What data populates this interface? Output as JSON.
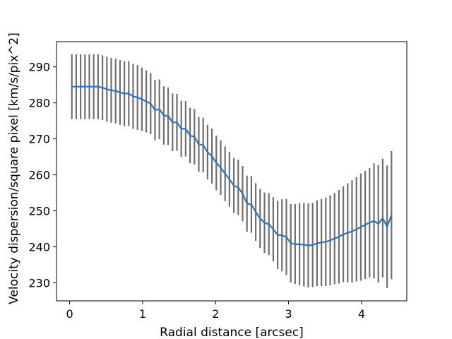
{
  "chart_data": {
    "type": "line",
    "xlabel": "Radial distance [arcsec]",
    "ylabel": "Velocity dispersion/square pixel [km/s/pix^2]",
    "xlim": [
      -0.18,
      4.62
    ],
    "ylim": [
      225,
      297
    ],
    "xticks": [
      0,
      1,
      2,
      3,
      4
    ],
    "yticks": [
      230,
      240,
      250,
      260,
      270,
      280,
      290
    ],
    "grid": false,
    "line_color": "#2f74c0",
    "errorbar_color": "#707070",
    "series": [
      {
        "x": [
          0.03,
          0.09,
          0.15,
          0.21,
          0.27,
          0.33,
          0.39,
          0.45,
          0.51,
          0.57,
          0.63,
          0.69,
          0.75,
          0.81,
          0.87,
          0.93,
          0.99,
          1.05,
          1.11,
          1.17,
          1.23,
          1.29,
          1.35,
          1.41,
          1.47,
          1.53,
          1.59,
          1.65,
          1.71,
          1.77,
          1.83,
          1.89,
          1.95,
          2.01,
          2.07,
          2.13,
          2.19,
          2.25,
          2.31,
          2.37,
          2.43,
          2.49,
          2.55,
          2.61,
          2.67,
          2.73,
          2.79,
          2.85,
          2.91,
          2.97,
          3.03,
          3.09,
          3.15,
          3.21,
          3.27,
          3.33,
          3.39,
          3.45,
          3.51,
          3.57,
          3.63,
          3.69,
          3.75,
          3.81,
          3.87,
          3.93,
          3.99,
          4.05,
          4.11,
          4.17,
          4.23,
          4.29,
          4.35,
          4.41
        ],
        "y": [
          284.5,
          284.5,
          284.5,
          284.5,
          284.5,
          284.5,
          284.5,
          284.2,
          283.8,
          283.5,
          283.3,
          282.9,
          282.6,
          282.6,
          281.8,
          281.5,
          281.0,
          280.4,
          279.8,
          278.0,
          278.2,
          276.5,
          276.3,
          274.6,
          274.6,
          272.8,
          272.8,
          270.9,
          270.6,
          268.5,
          268.3,
          266.3,
          265.2,
          263.3,
          262.0,
          260.3,
          258.8,
          257.0,
          256.5,
          254.8,
          252.0,
          251.8,
          249.7,
          247.9,
          246.7,
          246.3,
          244.9,
          243.3,
          243.2,
          242.7,
          241.0,
          240.8,
          240.7,
          240.6,
          240.4,
          240.5,
          241.0,
          241.2,
          241.4,
          241.8,
          242.3,
          242.8,
          243.5,
          243.9,
          244.3,
          244.9,
          245.5,
          246.1,
          246.7,
          247.2,
          246.4,
          248.0,
          245.6,
          248.8
        ],
        "yerr": [
          9.0,
          9.0,
          9.0,
          9.0,
          9.0,
          9.0,
          9.0,
          9.0,
          9.0,
          9.0,
          9.0,
          9.0,
          9.0,
          9.0,
          9.0,
          9.0,
          8.8,
          8.6,
          8.5,
          8.4,
          8.3,
          8.1,
          8.0,
          8.0,
          7.9,
          7.8,
          7.7,
          7.7,
          7.7,
          7.6,
          7.6,
          7.6,
          7.6,
          7.6,
          7.6,
          7.6,
          7.6,
          7.6,
          7.7,
          7.7,
          7.8,
          7.9,
          8.0,
          8.2,
          8.4,
          8.6,
          8.9,
          9.5,
          10.0,
          10.6,
          10.9,
          11.1,
          11.4,
          11.6,
          11.7,
          11.7,
          11.9,
          12.1,
          12.3,
          12.5,
          12.7,
          13.0,
          13.3,
          13.8,
          14.2,
          14.5,
          14.9,
          15.0,
          15.2,
          16.0,
          16.3,
          16.5,
          17.0,
          17.8
        ]
      }
    ]
  }
}
